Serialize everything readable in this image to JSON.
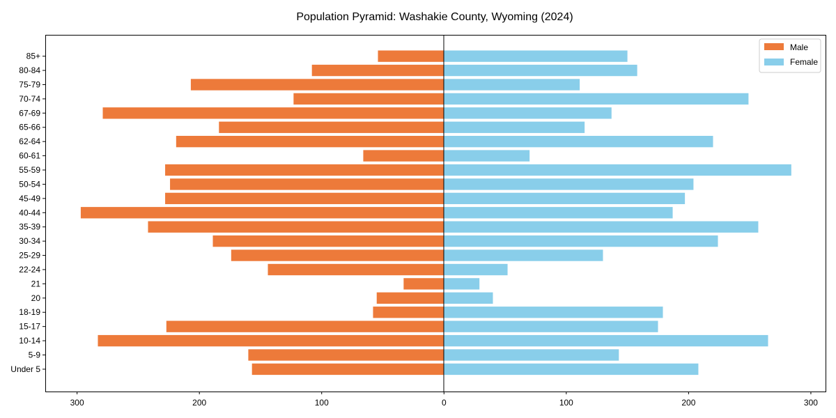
{
  "chart_data": {
    "type": "bar",
    "orientation": "horizontal",
    "title": "Population Pyramid: Washakie County, Wyoming (2024)",
    "xlabel": "",
    "ylabel": "",
    "categories": [
      "Under 5",
      "5-9",
      "10-14",
      "15-17",
      "18-19",
      "20",
      "21",
      "22-24",
      "25-29",
      "30-34",
      "35-39",
      "40-44",
      "45-49",
      "50-54",
      "55-59",
      "60-61",
      "62-64",
      "65-66",
      "67-69",
      "70-74",
      "75-79",
      "80-84",
      "85+"
    ],
    "series": [
      {
        "name": "Male",
        "color": "#ED7A3A",
        "values": [
          157,
          160,
          283,
          227,
          58,
          55,
          33,
          144,
          174,
          189,
          242,
          297,
          228,
          224,
          228,
          66,
          219,
          184,
          279,
          123,
          207,
          108,
          54
        ]
      },
      {
        "name": "Female",
        "color": "#89CEEA",
        "values": [
          208,
          143,
          265,
          175,
          179,
          40,
          29,
          52,
          130,
          224,
          257,
          187,
          197,
          204,
          284,
          70,
          220,
          115,
          137,
          249,
          111,
          158,
          150
        ]
      }
    ],
    "male_plotted_as_negative": true,
    "xlim": [
      -326,
      312
    ],
    "xticks": [
      -300,
      -200,
      -100,
      0,
      100,
      200,
      300
    ],
    "xtick_labels": [
      "300",
      "200",
      "100",
      "0",
      "100",
      "200",
      "300"
    ],
    "grid": false,
    "legend_position": "top-right"
  }
}
